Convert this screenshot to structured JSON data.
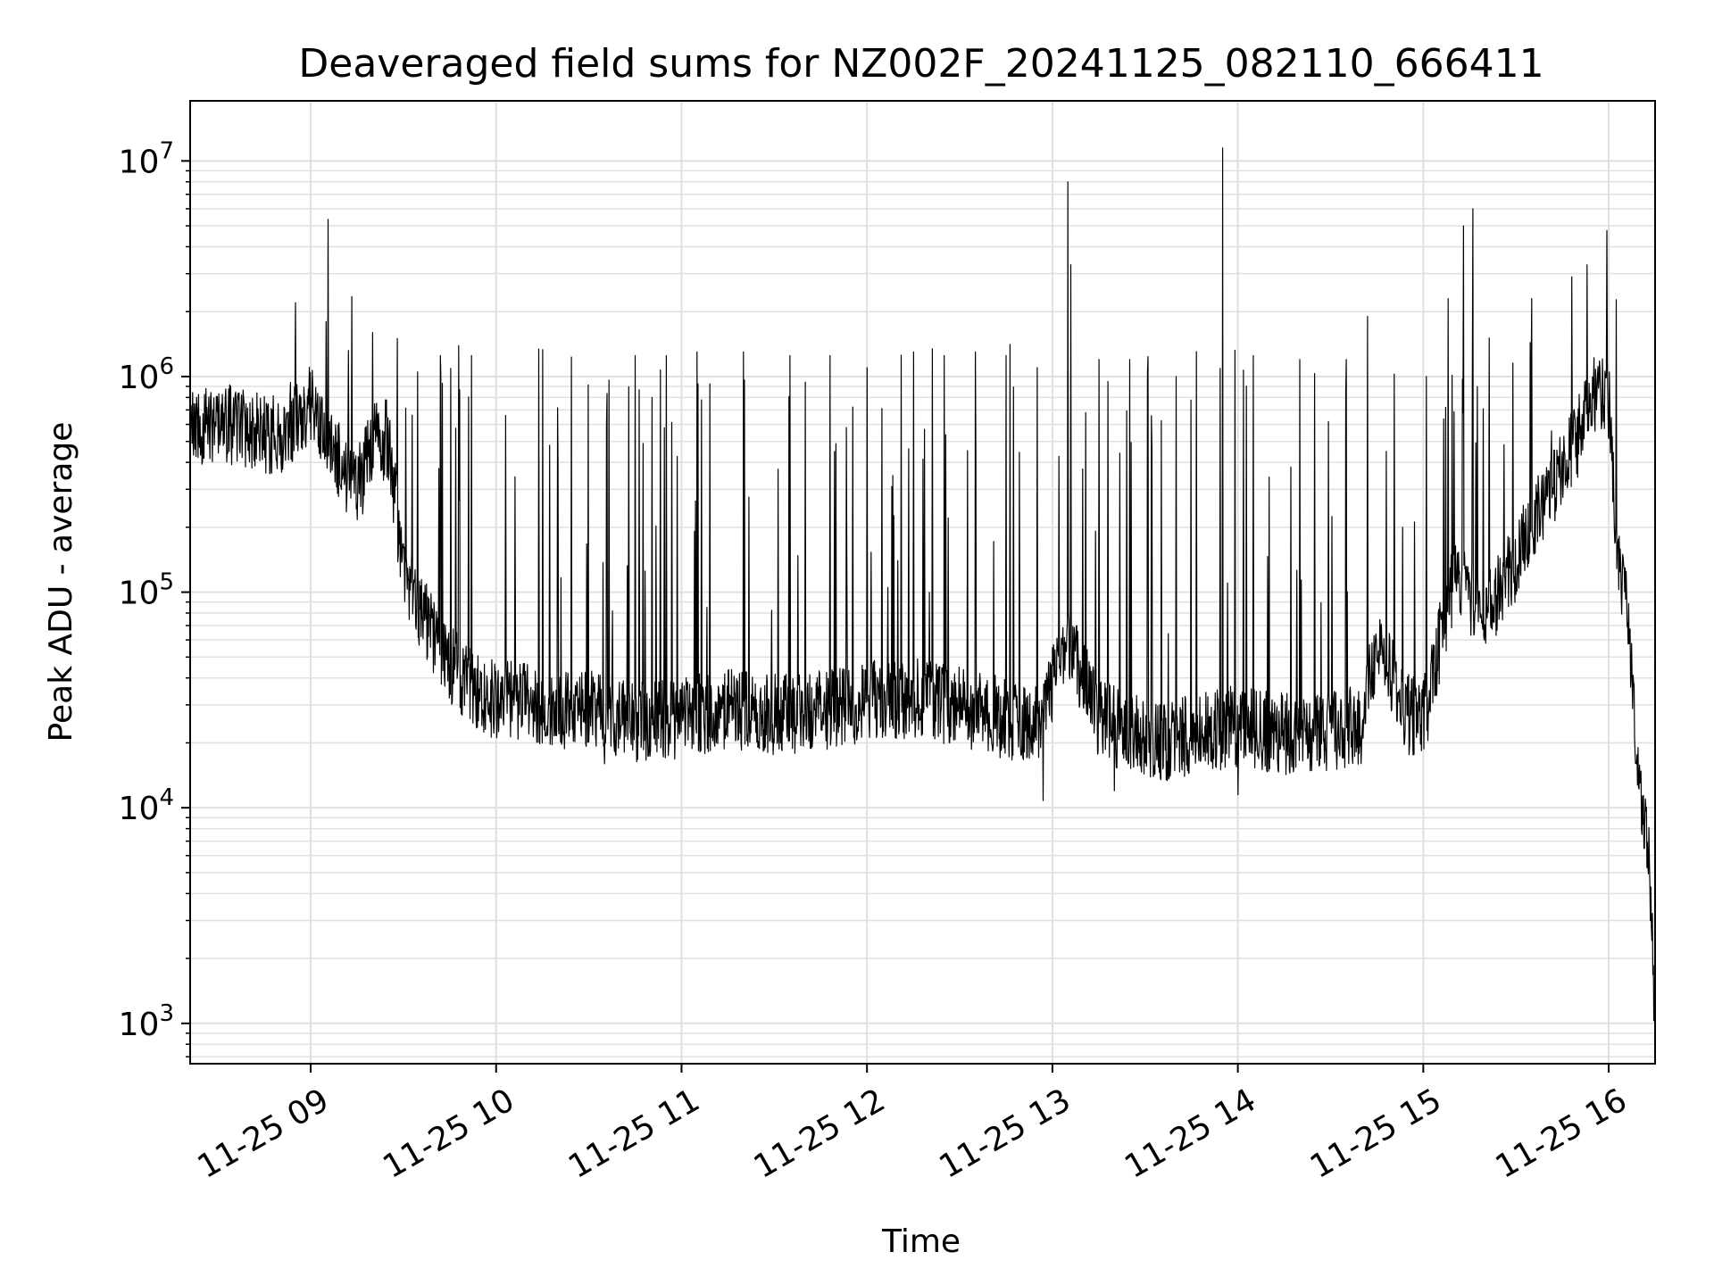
{
  "chart_data": {
    "type": "line",
    "title": "Deaveraged field sums for NZ002F_20241125_082110_666411",
    "xlabel": "Time",
    "ylabel": "Peak ADU - average",
    "y_scale": "log",
    "ylim": [
      650,
      19000000
    ],
    "xlim": [
      "2024-11-25 08:21",
      "2024-11-25 16:15"
    ],
    "grid": true,
    "legend": "none",
    "line_color": "#000000",
    "grid_color": "#e0e0e0",
    "x_ticks": [
      {
        "t": "2024-11-25 09:00",
        "label": "11-25 09"
      },
      {
        "t": "2024-11-25 10:00",
        "label": "11-25 10"
      },
      {
        "t": "2024-11-25 11:00",
        "label": "11-25 11"
      },
      {
        "t": "2024-11-25 12:00",
        "label": "11-25 12"
      },
      {
        "t": "2024-11-25 13:00",
        "label": "11-25 13"
      },
      {
        "t": "2024-11-25 14:00",
        "label": "11-25 14"
      },
      {
        "t": "2024-11-25 15:00",
        "label": "11-25 15"
      },
      {
        "t": "2024-11-25 16:00",
        "label": "11-25 16"
      }
    ],
    "y_ticks": [
      {
        "value": 1000,
        "mantissa": "10",
        "exponent": "3"
      },
      {
        "value": 10000,
        "mantissa": "10",
        "exponent": "4"
      },
      {
        "value": 100000,
        "mantissa": "10",
        "exponent": "5"
      },
      {
        "value": 1000000,
        "mantissa": "10",
        "exponent": "6"
      },
      {
        "value": 10000000,
        "mantissa": "10",
        "exponent": "7"
      }
    ],
    "series": [
      {
        "x": [
          "2024-11-25 08:21",
          "2024-11-25 08:30",
          "2024-11-25 08:40",
          "2024-11-25 08:50",
          "2024-11-25 08:55",
          "2024-11-25 09:00",
          "2024-11-25 09:05",
          "2024-11-25 09:10",
          "2024-11-25 09:15",
          "2024-11-25 09:20",
          "2024-11-25 09:25",
          "2024-11-25 09:30",
          "2024-11-25 09:35",
          "2024-11-25 09:40",
          "2024-11-25 09:50",
          "2024-11-25 10:00",
          "2024-11-25 10:15",
          "2024-11-25 10:30",
          "2024-11-25 10:45",
          "2024-11-25 11:00",
          "2024-11-25 11:15",
          "2024-11-25 11:30",
          "2024-11-25 11:45",
          "2024-11-25 12:00",
          "2024-11-25 12:15",
          "2024-11-25 12:30",
          "2024-11-25 12:45",
          "2024-11-25 12:55",
          "2024-11-25 13:05",
          "2024-11-25 13:15",
          "2024-11-25 13:25",
          "2024-11-25 13:35",
          "2024-11-25 13:45",
          "2024-11-25 14:00",
          "2024-11-25 14:15",
          "2024-11-25 14:30",
          "2024-11-25 14:40",
          "2024-11-25 14:45",
          "2024-11-25 14:55",
          "2024-11-25 15:00",
          "2024-11-25 15:05",
          "2024-11-25 15:10",
          "2024-11-25 15:20",
          "2024-11-25 15:30",
          "2024-11-25 15:40",
          "2024-11-25 15:50",
          "2024-11-25 15:55",
          "2024-11-25 16:00",
          "2024-11-25 16:03",
          "2024-11-25 16:06",
          "2024-11-25 16:09",
          "2024-11-25 16:11",
          "2024-11-25 16:13",
          "2024-11-25 16:15"
        ],
        "values": [
          550000,
          620000,
          560000,
          520000,
          650000,
          720000,
          580000,
          380000,
          300000,
          480000,
          520000,
          130000,
          85000,
          60000,
          38000,
          32000,
          30000,
          28000,
          25000,
          26000,
          29000,
          27000,
          28000,
          31000,
          32000,
          29000,
          26000,
          24000,
          60000,
          26000,
          22000,
          20000,
          22000,
          24000,
          22000,
          23000,
          24000,
          60000,
          27000,
          25000,
          55000,
          120000,
          80000,
          140000,
          280000,
          520000,
          850000,
          800000,
          130000,
          90000,
          18000,
          9000,
          6000,
          1000
        ]
      }
    ],
    "spikes": [
      {
        "t": "2024-11-25 08:55",
        "value": 2200000
      },
      {
        "t": "2024-11-25 09:05",
        "value": 1800000
      },
      {
        "t": "2024-11-25 09:20",
        "value": 1600000
      },
      {
        "t": "2024-11-25 09:28",
        "value": 1500000
      },
      {
        "t": "2024-11-25 09:42",
        "value": 1250000
      },
      {
        "t": "2024-11-25 09:52",
        "value": 1250000
      },
      {
        "t": "2024-11-25 10:03",
        "value": 660000
      },
      {
        "t": "2024-11-25 10:20",
        "value": 400000
      },
      {
        "t": "2024-11-25 10:35",
        "value": 560000
      },
      {
        "t": "2024-11-25 10:45",
        "value": 1250000
      },
      {
        "t": "2024-11-25 10:55",
        "value": 1250000
      },
      {
        "t": "2024-11-25 11:05",
        "value": 1300000
      },
      {
        "t": "2024-11-25 11:20",
        "value": 1300000
      },
      {
        "t": "2024-11-25 11:35",
        "value": 1250000
      },
      {
        "t": "2024-11-25 11:48",
        "value": 1250000
      },
      {
        "t": "2024-11-25 12:00",
        "value": 1100000
      },
      {
        "t": "2024-11-25 12:15",
        "value": 1300000
      },
      {
        "t": "2024-11-25 12:25",
        "value": 1250000
      },
      {
        "t": "2024-11-25 12:35",
        "value": 1300000
      },
      {
        "t": "2024-11-25 12:45",
        "value": 1250000
      },
      {
        "t": "2024-11-25 12:55",
        "value": 1100000
      },
      {
        "t": "2024-11-25 13:05",
        "value": 8000000
      },
      {
        "t": "2024-11-25 13:06",
        "value": 3300000
      },
      {
        "t": "2024-11-25 13:15",
        "value": 1200000
      },
      {
        "t": "2024-11-25 13:25",
        "value": 1200000
      },
      {
        "t": "2024-11-25 13:40",
        "value": 1000000
      },
      {
        "t": "2024-11-25 13:55",
        "value": 11500000
      },
      {
        "t": "2024-11-25 14:05",
        "value": 1250000
      },
      {
        "t": "2024-11-25 14:20",
        "value": 1200000
      },
      {
        "t": "2024-11-25 14:35",
        "value": 1200000
      },
      {
        "t": "2024-11-25 14:42",
        "value": 1900000
      },
      {
        "t": "2024-11-25 15:01",
        "value": 1000000
      },
      {
        "t": "2024-11-25 15:08",
        "value": 2300000
      },
      {
        "t": "2024-11-25 15:13",
        "value": 5000000
      },
      {
        "t": "2024-11-25 15:16",
        "value": 6000000
      },
      {
        "t": "2024-11-25 15:35",
        "value": 2300000
      },
      {
        "t": "2024-11-25 15:48",
        "value": 2900000
      },
      {
        "t": "2024-11-25 15:53",
        "value": 3300000
      }
    ],
    "dips": [
      {
        "t": "2024-11-25 12:57",
        "value": 10800
      },
      {
        "t": "2024-11-25 14:00",
        "value": 11500
      },
      {
        "t": "2024-11-25 13:20",
        "value": 12000
      },
      {
        "t": "2024-11-25 10:35",
        "value": 16000
      }
    ]
  }
}
